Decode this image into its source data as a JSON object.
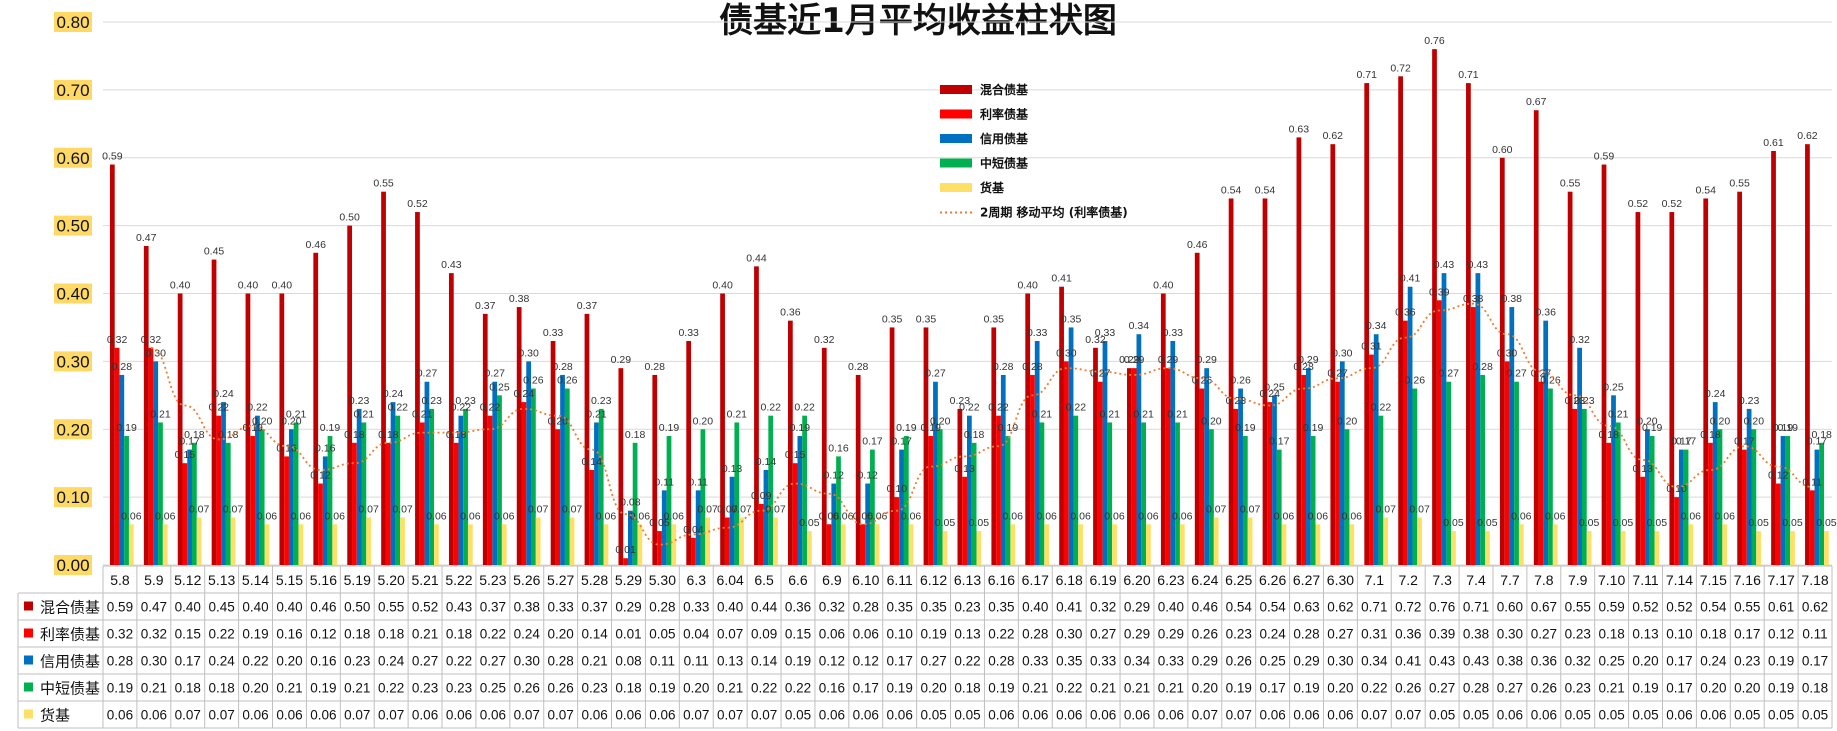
{
  "chart_data": {
    "type": "bar",
    "title": "债基近1月平均收益柱状图",
    "ylim": [
      0,
      0.8
    ],
    "yticks": [
      "0.00",
      "0.10",
      "0.20",
      "0.30",
      "0.40",
      "0.50",
      "0.60",
      "0.70",
      "0.80"
    ],
    "grid": true,
    "legend_position": "top-center",
    "categories": [
      "5.8",
      "5.9",
      "5.12",
      "5.13",
      "5.14",
      "5.15",
      "5.16",
      "5.19",
      "5.20",
      "5.21",
      "5.22",
      "5.23",
      "5.26",
      "5.27",
      "5.28",
      "5.29",
      "5.30",
      "6.3",
      "6.04",
      "6.5",
      "6.6",
      "6.9",
      "6.10",
      "6.11",
      "6.12",
      "6.13",
      "6.16",
      "6.17",
      "6.18",
      "6.19",
      "6.20",
      "6.23",
      "6.24",
      "6.25",
      "6.26",
      "6.27",
      "6.30",
      "7.1",
      "7.2",
      "7.3",
      "7.4",
      "7.7",
      "7.8",
      "7.9",
      "7.10",
      "7.11",
      "7.14",
      "7.15",
      "7.16",
      "7.17",
      "7.18"
    ],
    "series": [
      {
        "name": "混合债基",
        "color": "#C00000",
        "values": [
          0.59,
          0.47,
          0.4,
          0.45,
          0.4,
          0.4,
          0.46,
          0.5,
          0.55,
          0.52,
          0.43,
          0.37,
          0.38,
          0.33,
          0.37,
          0.29,
          0.28,
          0.33,
          0.4,
          0.44,
          0.36,
          0.32,
          0.28,
          0.35,
          0.35,
          0.23,
          0.35,
          0.4,
          0.41,
          0.32,
          0.29,
          0.4,
          0.46,
          0.54,
          0.54,
          0.63,
          0.62,
          0.71,
          0.72,
          0.76,
          0.71,
          0.6,
          0.67,
          0.55,
          0.59,
          0.52,
          0.52,
          0.54,
          0.55,
          0.61,
          0.62
        ]
      },
      {
        "name": "利率债基",
        "color": "#FF0000",
        "values": [
          0.32,
          0.32,
          0.15,
          0.22,
          0.19,
          0.16,
          0.12,
          0.18,
          0.18,
          0.21,
          0.18,
          0.22,
          0.24,
          0.2,
          0.14,
          0.01,
          0.05,
          0.04,
          0.07,
          0.09,
          0.15,
          0.06,
          0.06,
          0.1,
          0.19,
          0.13,
          0.22,
          0.28,
          0.3,
          0.27,
          0.29,
          0.29,
          0.26,
          0.23,
          0.24,
          0.28,
          0.27,
          0.31,
          0.36,
          0.39,
          0.38,
          0.3,
          0.27,
          0.23,
          0.18,
          0.13,
          0.1,
          0.18,
          0.17,
          0.12,
          0.11
        ]
      },
      {
        "name": "信用债基",
        "color": "#0070C0",
        "values": [
          0.28,
          0.3,
          0.17,
          0.24,
          0.22,
          0.2,
          0.16,
          0.23,
          0.24,
          0.27,
          0.22,
          0.27,
          0.3,
          0.28,
          0.21,
          0.08,
          0.11,
          0.11,
          0.13,
          0.14,
          0.19,
          0.12,
          0.12,
          0.17,
          0.27,
          0.22,
          0.28,
          0.33,
          0.35,
          0.33,
          0.34,
          0.33,
          0.29,
          0.26,
          0.25,
          0.29,
          0.3,
          0.34,
          0.41,
          0.43,
          0.43,
          0.38,
          0.36,
          0.32,
          0.25,
          0.2,
          0.17,
          0.24,
          0.23,
          0.19,
          0.17
        ]
      },
      {
        "name": "中短债基",
        "color": "#00B050",
        "values": [
          0.19,
          0.21,
          0.18,
          0.18,
          0.2,
          0.21,
          0.19,
          0.21,
          0.22,
          0.23,
          0.23,
          0.25,
          0.26,
          0.26,
          0.23,
          0.18,
          0.19,
          0.2,
          0.21,
          0.22,
          0.22,
          0.16,
          0.17,
          0.19,
          0.2,
          0.18,
          0.19,
          0.21,
          0.22,
          0.21,
          0.21,
          0.21,
          0.2,
          0.19,
          0.17,
          0.19,
          0.2,
          0.22,
          0.26,
          0.27,
          0.28,
          0.27,
          0.26,
          0.23,
          0.21,
          0.19,
          0.17,
          0.2,
          0.2,
          0.19,
          0.18
        ]
      },
      {
        "name": "货基",
        "color": "#FFE066",
        "values": [
          0.06,
          0.06,
          0.07,
          0.07,
          0.06,
          0.06,
          0.06,
          0.07,
          0.07,
          0.06,
          0.06,
          0.06,
          0.07,
          0.07,
          0.06,
          0.06,
          0.06,
          0.07,
          0.07,
          0.07,
          0.05,
          0.06,
          0.06,
          0.06,
          0.05,
          0.05,
          0.06,
          0.06,
          0.06,
          0.06,
          0.06,
          0.06,
          0.07,
          0.07,
          0.06,
          0.06,
          0.06,
          0.07,
          0.07,
          0.05,
          0.05,
          0.06,
          0.06,
          0.05,
          0.05,
          0.05,
          0.06,
          0.06,
          0.05,
          0.05,
          0.05
        ]
      }
    ],
    "trendline": {
      "name": "2周期 移动平均 (利率债基)",
      "color": "#ED7D31",
      "period": 2,
      "series_index": 1
    }
  }
}
